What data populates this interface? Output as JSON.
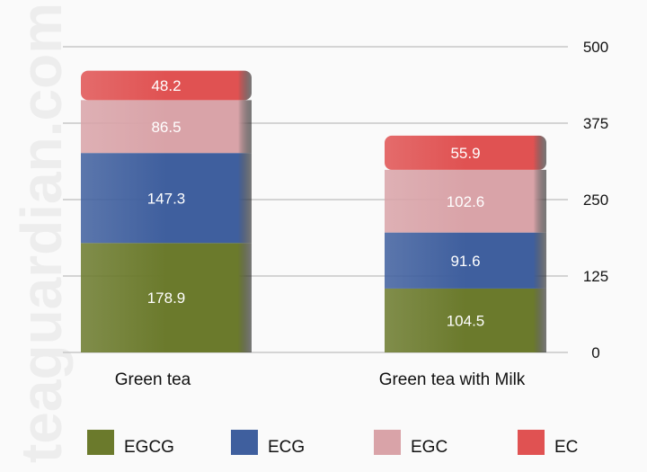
{
  "watermark": "teaguardian.com",
  "chart_data": {
    "type": "bar",
    "stacked": true,
    "categories": [
      "Green tea",
      "Green tea with Milk"
    ],
    "series": [
      {
        "name": "EGCG",
        "values": [
          178.9,
          104.5
        ],
        "color": "#6b7a2c"
      },
      {
        "name": "ECG",
        "values": [
          147.3,
          91.6
        ],
        "color": "#3f5f9e"
      },
      {
        "name": "EGC",
        "values": [
          86.5,
          102.6
        ],
        "color": "#d9a3a8"
      },
      {
        "name": "EC",
        "values": [
          48.2,
          55.9
        ],
        "color": "#e05252"
      }
    ],
    "yticks": [
      "0",
      "125",
      "250",
      "375",
      "500"
    ],
    "ylim": [
      0,
      500
    ],
    "grid": true,
    "yaxis_side": "right",
    "legend_placement": "bottom"
  }
}
